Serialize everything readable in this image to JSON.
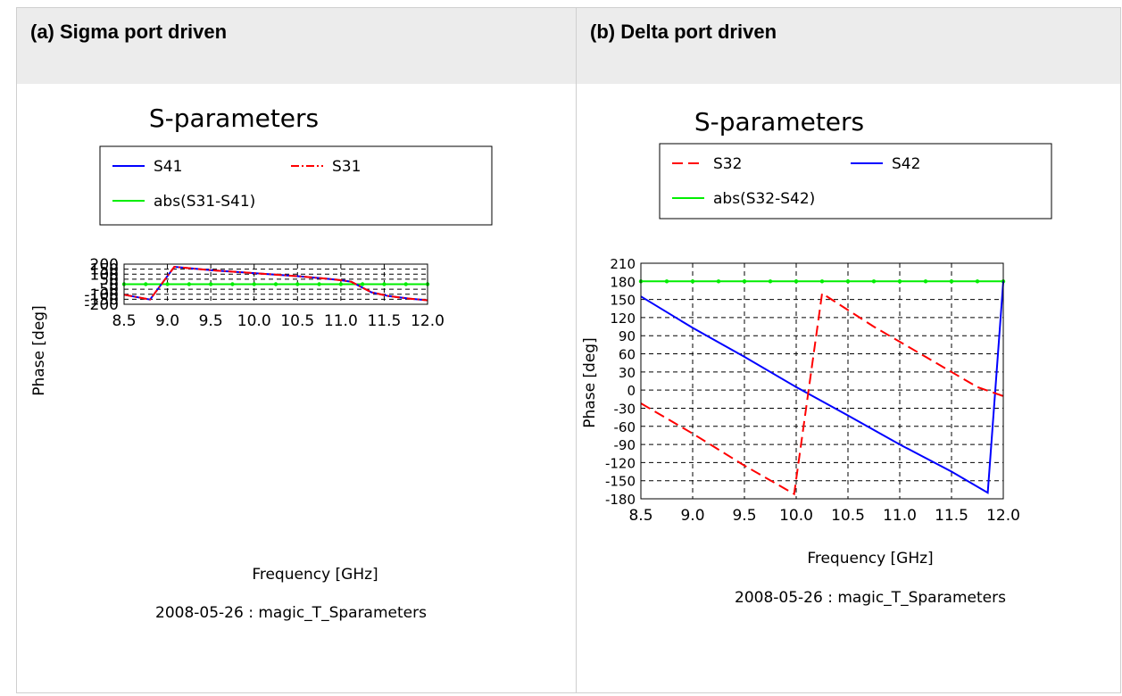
{
  "panels": [
    {
      "heading": "(a) Sigma port driven",
      "chart_data": {
        "type": "line",
        "title": "S-parameters",
        "xlabel": "Frequency [GHz]",
        "ylabel": "Phase [deg]",
        "footer": "2008-05-26 : magic_T_Sparameters",
        "xlim": [
          8.5,
          12.0
        ],
        "ylim": [
          -200,
          200
        ],
        "xticks": [
          8.5,
          9.0,
          9.5,
          10.0,
          10.5,
          11.0,
          11.5,
          12.0
        ],
        "xtick_labels": [
          "8.5",
          "9.0",
          "9.5",
          "10.0",
          "10.5",
          "11.0",
          "11.5",
          "12.0"
        ],
        "yticks": [
          -200,
          -150,
          -100,
          -50,
          0,
          50,
          100,
          150,
          200
        ],
        "ytick_labels": [
          "-200",
          "-150",
          "-100",
          "-50",
          "0",
          "50",
          "100",
          "150",
          "200"
        ],
        "grid": true,
        "legend_position": "top",
        "series": [
          {
            "name": "S41",
            "color": "#0000ff",
            "style": "solid",
            "x": [
              8.5,
              8.8,
              9.08,
              9.5,
              10.0,
              10.5,
              10.8,
              11.0,
              11.12,
              11.35,
              11.55,
              11.8,
              12.0
            ],
            "y": [
              -105,
              -153,
              173,
              140,
              110,
              80,
              58,
              40,
              25,
              -80,
              -118,
              -145,
              -160
            ]
          },
          {
            "name": "S31",
            "color": "#ff0000",
            "style": "dashdot",
            "x": [
              8.5,
              8.8,
              9.08,
              9.5,
              10.0,
              10.5,
              10.8,
              11.0,
              11.12,
              11.35,
              11.55,
              11.8,
              12.0
            ],
            "y": [
              -105,
              -153,
              173,
              140,
              110,
              80,
              58,
              40,
              25,
              -80,
              -118,
              -145,
              -160
            ]
          },
          {
            "name": "abs(S31-S41)",
            "color": "#00ee00",
            "style": "solid",
            "x": [
              8.5,
              8.75,
              9.0,
              9.25,
              9.5,
              9.75,
              10.0,
              10.25,
              10.5,
              10.75,
              11.0,
              11.25,
              11.5,
              11.75,
              12.0
            ],
            "y": [
              0,
              0,
              0,
              0,
              0,
              0,
              0,
              0,
              0,
              0,
              0,
              0,
              0,
              0,
              0
            ]
          }
        ]
      }
    },
    {
      "heading": "(b) Delta port driven",
      "chart_data": {
        "type": "line",
        "title": "S-parameters",
        "xlabel": "Frequency [GHz]",
        "ylabel": "Phase [deg]",
        "footer": "2008-05-26 : magic_T_Sparameters",
        "xlim": [
          8.5,
          12.0
        ],
        "ylim": [
          -180,
          210
        ],
        "xticks": [
          8.5,
          9.0,
          9.5,
          10.0,
          10.5,
          11.0,
          11.5,
          12.0
        ],
        "xtick_labels": [
          "8.5",
          "9.0",
          "9.5",
          "10.0",
          "10.5",
          "11.0",
          "11.5",
          "12.0"
        ],
        "yticks": [
          -180,
          -150,
          -120,
          -90,
          -60,
          -30,
          0,
          30,
          60,
          90,
          120,
          150,
          180,
          210
        ],
        "ytick_labels": [
          "-180",
          "-150",
          "-120",
          "-90",
          "-60",
          "-30",
          "0",
          "30",
          "60",
          "90",
          "120",
          "150",
          "180",
          "210"
        ],
        "grid": true,
        "legend_position": "top",
        "series": [
          {
            "name": "S32",
            "color": "#ff0000",
            "style": "dashed",
            "x": [
              8.5,
              9.0,
              9.5,
              9.98,
              10.25,
              10.75,
              11.25,
              11.75,
              12.0
            ],
            "y": [
              -22,
              -72,
              -125,
              -172,
              160,
              105,
              55,
              5,
              -10
            ]
          },
          {
            "name": "S42",
            "color": "#0000ff",
            "style": "solid",
            "x": [
              8.5,
              9.0,
              9.5,
              10.0,
              10.5,
              11.0,
              11.5,
              11.85,
              12.0
            ],
            "y": [
              155,
              103,
              55,
              5,
              -42,
              -90,
              -135,
              -170,
              180
            ]
          },
          {
            "name": "abs(S32-S42)",
            "color": "#00ee00",
            "style": "solid",
            "x": [
              8.5,
              8.75,
              9.0,
              9.25,
              9.5,
              9.75,
              10.0,
              10.25,
              10.5,
              10.75,
              11.0,
              11.25,
              11.5,
              11.75,
              12.0
            ],
            "y": [
              180,
              180,
              180,
              180,
              180,
              180,
              180,
              180,
              180,
              180,
              180,
              180,
              180,
              180,
              180
            ]
          }
        ]
      }
    }
  ]
}
